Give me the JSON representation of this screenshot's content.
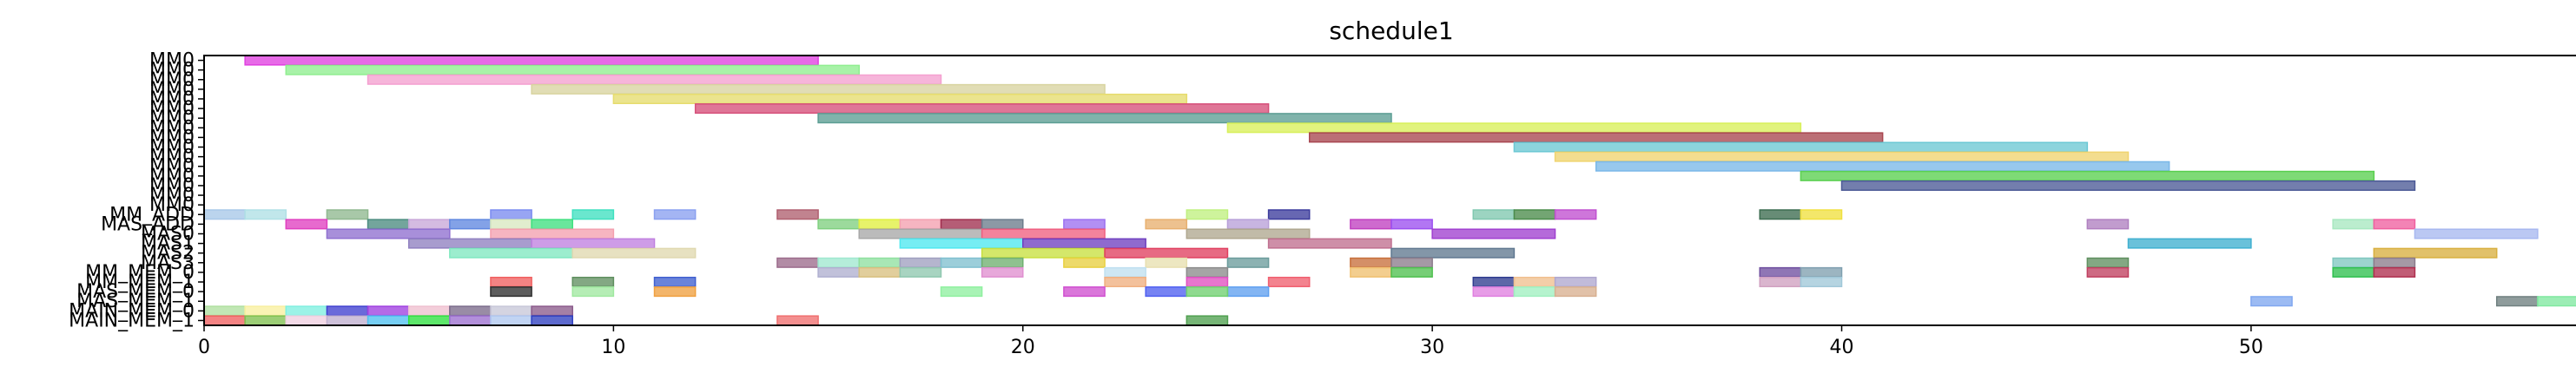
{
  "chart_data": {
    "type": "gantt",
    "title": "schedule1",
    "xlabel": "",
    "ylabel": "",
    "xlim": [
      0,
      58
    ],
    "x_ticks": [
      0,
      10,
      20,
      30,
      40,
      50
    ],
    "grid": false,
    "rows": [
      "MM0",
      "MM1",
      "MM2",
      "MM3",
      "MM4",
      "MM5",
      "MM6",
      "MM7",
      "MM8",
      "MM9",
      "MM10",
      "MM11",
      "MM12",
      "MM13",
      "MM14",
      "MM15",
      "MM_ADD",
      "MAS_ADD",
      "MAS0",
      "MAS1",
      "MAS2",
      "MAS3",
      "MM_MEM_0",
      "MM_MEM_1",
      "MAS_MEM_0",
      "MAS_MEM_1",
      "MAIN_MEM_0",
      "MAIN_MEM_1"
    ],
    "y_tick_labels": [
      "MM0",
      "MM0",
      "MM0",
      "MM0",
      "MM0",
      "MM0",
      "MM0",
      "MM0",
      "MM0",
      "MM0",
      "MM0",
      "MM0",
      "MM0",
      "MM0",
      "MM0",
      "MM0",
      "MM_ADD",
      "MAS_ADD",
      "MAS0",
      "MAS1",
      "MAS2",
      "MAS3",
      "MM_MEM_0",
      "MM_MEM_1",
      "MAS_MEM_0",
      "MAS_MEM_1",
      "MAIN_MEM_0",
      "MAIN_MEM_1"
    ],
    "tasks": [
      {
        "row": 0,
        "start": 1,
        "end": 15,
        "color": "#e040e0"
      },
      {
        "row": 1,
        "start": 2,
        "end": 16,
        "color": "#90ee90"
      },
      {
        "row": 2,
        "start": 4,
        "end": 18,
        "color": "#f4a0d0"
      },
      {
        "row": 3,
        "start": 8,
        "end": 22,
        "color": "#d8d4a0"
      },
      {
        "row": 4,
        "start": 10,
        "end": 24,
        "color": "#e6dc6e"
      },
      {
        "row": 5,
        "start": 12,
        "end": 26,
        "color": "#d6507a"
      },
      {
        "row": 6,
        "start": 15,
        "end": 29,
        "color": "#5c9e94"
      },
      {
        "row": 7,
        "start": 25,
        "end": 39,
        "color": "#d8f05a"
      },
      {
        "row": 8,
        "start": 27,
        "end": 41,
        "color": "#a84650"
      },
      {
        "row": 9,
        "start": 32,
        "end": 46,
        "color": "#6cc8d4"
      },
      {
        "row": 10,
        "start": 33,
        "end": 47,
        "color": "#f0d470"
      },
      {
        "row": 11,
        "start": 34,
        "end": 48,
        "color": "#7ab8e8"
      },
      {
        "row": 12,
        "start": 39,
        "end": 53,
        "color": "#5ad050"
      },
      {
        "row": 13,
        "start": 40,
        "end": 54,
        "color": "#4c5a96"
      },
      {
        "row": 16,
        "start": 0,
        "end": 1,
        "color": "#a8c8e8"
      },
      {
        "row": 16,
        "start": 1,
        "end": 2,
        "color": "#b0e0e6"
      },
      {
        "row": 16,
        "start": 3,
        "end": 4,
        "color": "#90b890"
      },
      {
        "row": 16,
        "start": 7,
        "end": 8,
        "color": "#7b8cf0"
      },
      {
        "row": 16,
        "start": 9,
        "end": 10,
        "color": "#40e0c0"
      },
      {
        "row": 16,
        "start": 11,
        "end": 12,
        "color": "#8aa0f0"
      },
      {
        "row": 16,
        "start": 14,
        "end": 15,
        "color": "#b06070"
      },
      {
        "row": 16,
        "start": 24,
        "end": 25,
        "color": "#c0f080"
      },
      {
        "row": 16,
        "start": 26,
        "end": 27,
        "color": "#3c3c9c"
      },
      {
        "row": 16,
        "start": 31,
        "end": 32,
        "color": "#80c8b0"
      },
      {
        "row": 16,
        "start": 32,
        "end": 33,
        "color": "#4c8c4c"
      },
      {
        "row": 16,
        "start": 33,
        "end": 34,
        "color": "#c050d0"
      },
      {
        "row": 16,
        "start": 38,
        "end": 39,
        "color": "#3c6c50"
      },
      {
        "row": 16,
        "start": 39,
        "end": 40,
        "color": "#f0e040"
      },
      {
        "row": 17,
        "start": 2,
        "end": 3,
        "color": "#e040c0"
      },
      {
        "row": 17,
        "start": 4,
        "end": 5,
        "color": "#4c8c80"
      },
      {
        "row": 17,
        "start": 5,
        "end": 6,
        "color": "#c8a8d8"
      },
      {
        "row": 17,
        "start": 6,
        "end": 7,
        "color": "#6088e0"
      },
      {
        "row": 17,
        "start": 7,
        "end": 8,
        "color": "#d8e8c0"
      },
      {
        "row": 17,
        "start": 8,
        "end": 9,
        "color": "#40e080"
      },
      {
        "row": 17,
        "start": 15,
        "end": 16,
        "color": "#80d080"
      },
      {
        "row": 17,
        "start": 16,
        "end": 17,
        "color": "#e0f040"
      },
      {
        "row": 17,
        "start": 17,
        "end": 18,
        "color": "#f4a0b0"
      },
      {
        "row": 17,
        "start": 18,
        "end": 19,
        "color": "#a03050"
      },
      {
        "row": 17,
        "start": 19,
        "end": 20,
        "color": "#6c7c8c"
      },
      {
        "row": 17,
        "start": 21,
        "end": 22,
        "color": "#9c70f0"
      },
      {
        "row": 17,
        "start": 23,
        "end": 24,
        "color": "#e8b070"
      },
      {
        "row": 17,
        "start": 25,
        "end": 26,
        "color": "#b8a0d8"
      },
      {
        "row": 17,
        "start": 28,
        "end": 29,
        "color": "#c040c0"
      },
      {
        "row": 17,
        "start": 29,
        "end": 30,
        "color": "#9c50f0"
      },
      {
        "row": 17,
        "start": 46,
        "end": 47,
        "color": "#b080c0"
      },
      {
        "row": 17,
        "start": 52,
        "end": 53,
        "color": "#a8e8c0"
      },
      {
        "row": 17,
        "start": 53,
        "end": 54,
        "color": "#f060a0"
      },
      {
        "row": 18,
        "start": 3,
        "end": 6,
        "color": "#9070d0"
      },
      {
        "row": 18,
        "start": 7,
        "end": 10,
        "color": "#f4a0b0"
      },
      {
        "row": 18,
        "start": 16,
        "end": 19,
        "color": "#a8a8a8"
      },
      {
        "row": 18,
        "start": 19,
        "end": 22,
        "color": "#f06080"
      },
      {
        "row": 18,
        "start": 24,
        "end": 27,
        "color": "#b0a890"
      },
      {
        "row": 18,
        "start": 30,
        "end": 33,
        "color": "#a040d0"
      },
      {
        "row": 18,
        "start": 54,
        "end": 57,
        "color": "#a8b8f0"
      },
      {
        "row": 19,
        "start": 5,
        "end": 8,
        "color": "#9080c0"
      },
      {
        "row": 19,
        "start": 8,
        "end": 11,
        "color": "#c080e0"
      },
      {
        "row": 19,
        "start": 17,
        "end": 20,
        "color": "#50e8f0"
      },
      {
        "row": 19,
        "start": 20,
        "end": 23,
        "color": "#7040c0"
      },
      {
        "row": 19,
        "start": 26,
        "end": 29,
        "color": "#c07090"
      },
      {
        "row": 19,
        "start": 47,
        "end": 50,
        "color": "#40b0d0"
      },
      {
        "row": 20,
        "start": 6,
        "end": 9,
        "color": "#80e8c0"
      },
      {
        "row": 20,
        "start": 9,
        "end": 12,
        "color": "#e0d8b0"
      },
      {
        "row": 20,
        "start": 19,
        "end": 22,
        "color": "#c8e040"
      },
      {
        "row": 20,
        "start": 22,
        "end": 25,
        "color": "#e04060"
      },
      {
        "row": 20,
        "start": 29,
        "end": 32,
        "color": "#607890"
      },
      {
        "row": 20,
        "start": 53,
        "end": 56,
        "color": "#d8b040"
      },
      {
        "row": 21,
        "start": 14,
        "end": 15,
        "color": "#9c6c8c"
      },
      {
        "row": 21,
        "start": 15,
        "end": 16,
        "color": "#a0e8d0"
      },
      {
        "row": 21,
        "start": 16,
        "end": 17,
        "color": "#90e0a0"
      },
      {
        "row": 21,
        "start": 17,
        "end": 18,
        "color": "#a0a0c0"
      },
      {
        "row": 21,
        "start": 18,
        "end": 19,
        "color": "#80c0d0"
      },
      {
        "row": 21,
        "start": 19,
        "end": 20,
        "color": "#70b070"
      },
      {
        "row": 21,
        "start": 21,
        "end": 22,
        "color": "#e8d040"
      },
      {
        "row": 21,
        "start": 23,
        "end": 24,
        "color": "#e8e0b0"
      },
      {
        "row": 21,
        "start": 25,
        "end": 26,
        "color": "#6c9c9c"
      },
      {
        "row": 21,
        "start": 28,
        "end": 29,
        "color": "#c8703c"
      },
      {
        "row": 21,
        "start": 29,
        "end": 30,
        "color": "#8c7c8c"
      },
      {
        "row": 21,
        "start": 46,
        "end": 47,
        "color": "#609060"
      },
      {
        "row": 21,
        "start": 52,
        "end": 53,
        "color": "#80c8c0"
      },
      {
        "row": 21,
        "start": 53,
        "end": 54,
        "color": "#8c7c8c"
      },
      {
        "row": 22,
        "start": 15,
        "end": 16,
        "color": "#b0b0d0"
      },
      {
        "row": 22,
        "start": 16,
        "end": 17,
        "color": "#d8c080"
      },
      {
        "row": 22,
        "start": 17,
        "end": 18,
        "color": "#90c8b0"
      },
      {
        "row": 22,
        "start": 19,
        "end": 20,
        "color": "#e090d0"
      },
      {
        "row": 22,
        "start": 22,
        "end": 23,
        "color": "#c0e0f0"
      },
      {
        "row": 22,
        "start": 24,
        "end": 25,
        "color": "#8c8c8c"
      },
      {
        "row": 22,
        "start": 28,
        "end": 29,
        "color": "#f0c070"
      },
      {
        "row": 22,
        "start": 29,
        "end": 30,
        "color": "#50c050"
      },
      {
        "row": 22,
        "start": 38,
        "end": 39,
        "color": "#7050a0"
      },
      {
        "row": 22,
        "start": 39,
        "end": 40,
        "color": "#80a0b0"
      },
      {
        "row": 22,
        "start": 46,
        "end": 47,
        "color": "#c04060"
      },
      {
        "row": 22,
        "start": 52,
        "end": 53,
        "color": "#30c050"
      },
      {
        "row": 22,
        "start": 53,
        "end": 54,
        "color": "#b03050"
      },
      {
        "row": 23,
        "start": 7,
        "end": 8,
        "color": "#f06060"
      },
      {
        "row": 23,
        "start": 9,
        "end": 10,
        "color": "#609060"
      },
      {
        "row": 23,
        "start": 11,
        "end": 12,
        "color": "#4060d0"
      },
      {
        "row": 23,
        "start": 22,
        "end": 23,
        "color": "#f0b080"
      },
      {
        "row": 23,
        "start": 24,
        "end": 25,
        "color": "#e050c0"
      },
      {
        "row": 23,
        "start": 26,
        "end": 27,
        "color": "#f06070"
      },
      {
        "row": 23,
        "start": 31,
        "end": 32,
        "color": "#303c90"
      },
      {
        "row": 23,
        "start": 32,
        "end": 33,
        "color": "#f0c090"
      },
      {
        "row": 23,
        "start": 33,
        "end": 34,
        "color": "#b0a8d0"
      },
      {
        "row": 23,
        "start": 38,
        "end": 39,
        "color": "#d0a0c0"
      },
      {
        "row": 23,
        "start": 39,
        "end": 40,
        "color": "#a0c8d8"
      },
      {
        "row": 24,
        "start": 7,
        "end": 8,
        "color": "#303030"
      },
      {
        "row": 24,
        "start": 9,
        "end": 10,
        "color": "#a0e8a0"
      },
      {
        "row": 24,
        "start": 11,
        "end": 12,
        "color": "#f0a040"
      },
      {
        "row": 24,
        "start": 18,
        "end": 19,
        "color": "#90f0a0"
      },
      {
        "row": 24,
        "start": 21,
        "end": 22,
        "color": "#d050d0"
      },
      {
        "row": 24,
        "start": 23,
        "end": 24,
        "color": "#5060f0"
      },
      {
        "row": 24,
        "start": 25,
        "end": 26,
        "color": "#60a0f0"
      },
      {
        "row": 24,
        "start": 24,
        "end": 25,
        "color": "#70d070"
      },
      {
        "row": 24,
        "start": 31,
        "end": 32,
        "color": "#e080e0"
      },
      {
        "row": 24,
        "start": 32,
        "end": 33,
        "color": "#a0f0c0"
      },
      {
        "row": 24,
        "start": 33,
        "end": 34,
        "color": "#d8b090"
      },
      {
        "row": 25,
        "start": 50,
        "end": 51,
        "color": "#80a8f0"
      },
      {
        "row": 25,
        "start": 56,
        "end": 57,
        "color": "#708080"
      },
      {
        "row": 25,
        "start": 57,
        "end": 58,
        "color": "#80e8a0"
      },
      {
        "row": 26,
        "start": 0,
        "end": 1,
        "color": "#b0e0a0"
      },
      {
        "row": 26,
        "start": 1,
        "end": 2,
        "color": "#f8f0a0"
      },
      {
        "row": 26,
        "start": 2,
        "end": 3,
        "color": "#80f0e0"
      },
      {
        "row": 26,
        "start": 3,
        "end": 4,
        "color": "#4040d0"
      },
      {
        "row": 26,
        "start": 4,
        "end": 5,
        "color": "#a040e0"
      },
      {
        "row": 26,
        "start": 5,
        "end": 6,
        "color": "#f0c0d0"
      },
      {
        "row": 26,
        "start": 6,
        "end": 7,
        "color": "#7c6c8c"
      },
      {
        "row": 26,
        "start": 7,
        "end": 8,
        "color": "#c8c8d8"
      },
      {
        "row": 26,
        "start": 8,
        "end": 9,
        "color": "#8c5c8c"
      },
      {
        "row": 27,
        "start": 0,
        "end": 1,
        "color": "#f06060"
      },
      {
        "row": 27,
        "start": 1,
        "end": 2,
        "color": "#80c050"
      },
      {
        "row": 27,
        "start": 2,
        "end": 3,
        "color": "#f0d0e0"
      },
      {
        "row": 27,
        "start": 3,
        "end": 4,
        "color": "#c0b0d0"
      },
      {
        "row": 27,
        "start": 4,
        "end": 5,
        "color": "#50c0f0"
      },
      {
        "row": 27,
        "start": 5,
        "end": 6,
        "color": "#30e040"
      },
      {
        "row": 27,
        "start": 6,
        "end": 7,
        "color": "#9c70d0"
      },
      {
        "row": 27,
        "start": 7,
        "end": 8,
        "color": "#b0c8f0"
      },
      {
        "row": 27,
        "start": 8,
        "end": 9,
        "color": "#3040c0"
      },
      {
        "row": 27,
        "start": 14,
        "end": 15,
        "color": "#f07070"
      },
      {
        "row": 27,
        "start": 24,
        "end": 25,
        "color": "#50a050"
      }
    ]
  }
}
